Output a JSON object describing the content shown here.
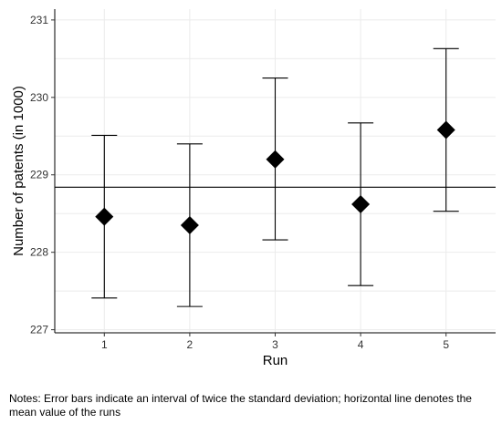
{
  "chart_data": {
    "type": "scatter",
    "title": "",
    "xlabel": "Run",
    "ylabel": "Number of patents (in 1000)",
    "categories": [
      "1",
      "2",
      "3",
      "4",
      "5"
    ],
    "x": [
      1,
      2,
      3,
      4,
      5
    ],
    "y": [
      228.46,
      228.35,
      229.2,
      228.62,
      229.58
    ],
    "error_low": [
      227.41,
      227.3,
      228.16,
      227.57,
      228.53
    ],
    "error_high": [
      229.51,
      229.4,
      230.25,
      229.67,
      230.63
    ],
    "mean_line": 228.84,
    "xlim": [
      0.42,
      5.58
    ],
    "ylim": [
      226.96,
      231.14
    ],
    "yticks": [
      227,
      228,
      229,
      230,
      231
    ],
    "ytick_labels": [
      "227",
      "228",
      "229",
      "230",
      "231"
    ],
    "xtick_labels": [
      "1",
      "2",
      "3",
      "4",
      "5"
    ],
    "grid": true,
    "marker": "diamond",
    "marker_color": "#000000"
  },
  "notes": "Notes: Error bars indicate an interval of twice the standard deviation; horizontal line denotes the mean value of the runs"
}
